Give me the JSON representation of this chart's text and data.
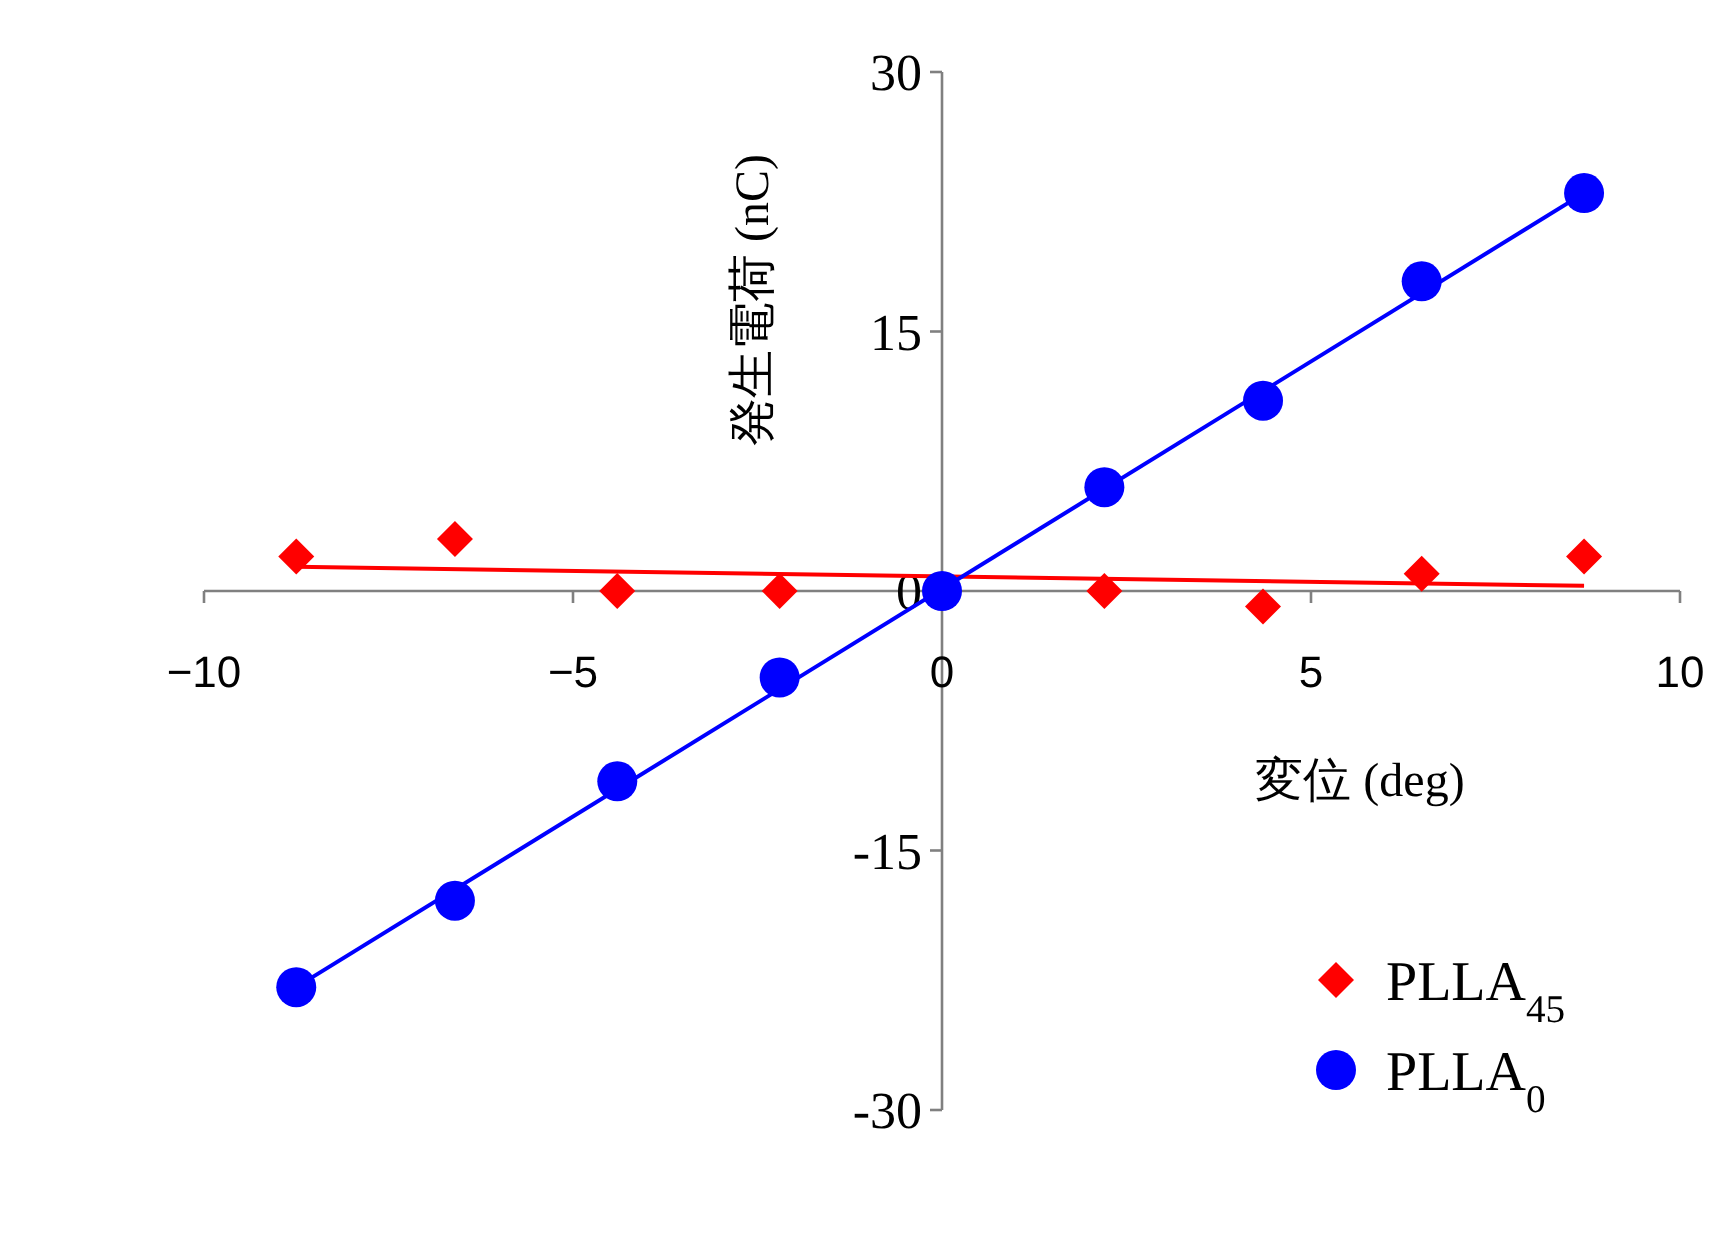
{
  "chart_data": {
    "type": "scatter",
    "xlabel": "変位 (deg)",
    "ylabel": "発生電荷 (nC)",
    "xlim": [
      -10,
      10
    ],
    "xticks": [
      {
        "value": -10,
        "label": "−10"
      },
      {
        "value": -5,
        "label": "−5"
      },
      0,
      5,
      10
    ],
    "ylim": [
      -30,
      30
    ],
    "yticks": [
      -30,
      -15,
      0,
      15,
      30
    ],
    "grid": false,
    "legend": "bottom right",
    "series": [
      {
        "name": "PLLA$_{45}$",
        "color": "#ff0000",
        "marker": "diamond",
        "x": [
          -8.75,
          -6.6,
          -4.4,
          -2.2,
          2.2,
          4.35,
          6.5,
          8.7
        ],
        "values": [
          2.0,
          3.0,
          0,
          0,
          0,
          -0.9,
          1.0,
          2.0
        ]
      },
      {
        "name": "PLLA$_{0}$",
        "color": "#0000ff",
        "marker": "circle",
        "x": [
          -8.75,
          -6.6,
          -4.4,
          -2.2,
          0,
          2.2,
          4.35,
          6.5,
          8.7
        ],
        "values": [
          -22.9,
          -17.9,
          -11.0,
          -5.0,
          0,
          6.0,
          11.0,
          17.9,
          23.0
        ]
      },
      {
        "type": "line",
        "color": "#ff0000",
        "marker": "none",
        "x": [
          -8.75,
          8.7
        ],
        "values": [
          1.4,
          0.3
        ]
      },
      {
        "type": "line",
        "color": "#0000ff",
        "marker": "none",
        "x": [
          -8.75,
          8.7
        ],
        "values": [
          -22.9,
          23.0
        ]
      }
    ]
  }
}
